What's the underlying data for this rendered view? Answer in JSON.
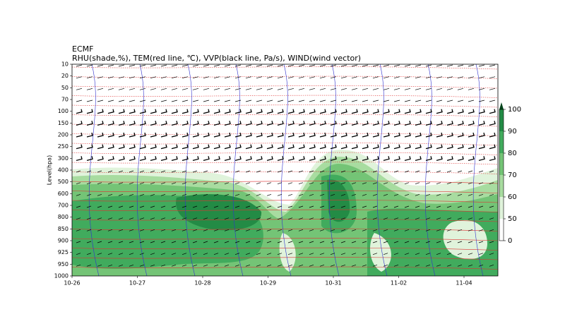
{
  "chart_data": {
    "type": "contour",
    "title": "ECMF",
    "subtitle": "RHU(shade,%), TEM(red line, ℃), VVP(black line, Pa/s), WIND(wind vector)",
    "ylabel": "Level(hpa)",
    "levels": [
      10,
      20,
      50,
      70,
      100,
      150,
      200,
      250,
      300,
      400,
      500,
      600,
      700,
      800,
      850,
      900,
      925,
      950,
      1000
    ],
    "categories": [
      "10-26",
      "10-27",
      "10-28",
      "10-29",
      "10-31",
      "11-02",
      "11-04"
    ],
    "colorbar": {
      "ticks": [
        0,
        50,
        60,
        70,
        80,
        90,
        100
      ],
      "colors": [
        "#ffffff",
        "#e0f3db",
        "#a8dca0",
        "#74c476",
        "#41ab5d",
        "#238b45"
      ]
    }
  }
}
